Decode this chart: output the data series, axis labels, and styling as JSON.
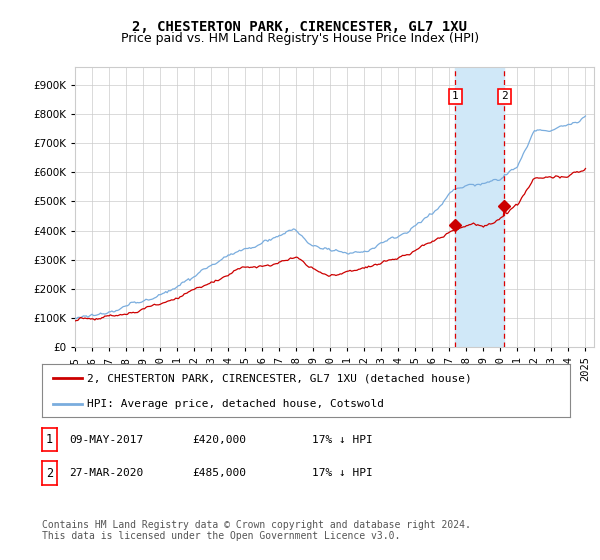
{
  "title": "2, CHESTERTON PARK, CIRENCESTER, GL7 1XU",
  "subtitle": "Price paid vs. HM Land Registry's House Price Index (HPI)",
  "ytick_values": [
    0,
    100000,
    200000,
    300000,
    400000,
    500000,
    600000,
    700000,
    800000,
    900000
  ],
  "ylim": [
    0,
    960000
  ],
  "xlim_start": 1995.0,
  "xlim_end": 2025.5,
  "hpi_color": "#7aadde",
  "price_color": "#cc0000",
  "sale1_x": 2017.356,
  "sale1_y": 420000,
  "sale2_x": 2020.24,
  "sale2_y": 485000,
  "vline1_x": 2017.356,
  "vline2_x": 2020.24,
  "shade_color": "#d0e8f8",
  "legend_house_label": "2, CHESTERTON PARK, CIRENCESTER, GL7 1XU (detached house)",
  "legend_hpi_label": "HPI: Average price, detached house, Cotswold",
  "table_rows": [
    {
      "num": "1",
      "date": "09-MAY-2017",
      "price": "£420,000",
      "pct": "17% ↓ HPI"
    },
    {
      "num": "2",
      "date": "27-MAR-2020",
      "price": "£485,000",
      "pct": "17% ↓ HPI"
    }
  ],
  "footnote": "Contains HM Land Registry data © Crown copyright and database right 2024.\nThis data is licensed under the Open Government Licence v3.0.",
  "background_color": "#ffffff",
  "grid_color": "#cccccc",
  "vline_color": "#dd0000",
  "title_fontsize": 10,
  "subtitle_fontsize": 9,
  "tick_fontsize": 7.5,
  "legend_fontsize": 8,
  "table_fontsize": 8,
  "footnote_fontsize": 7
}
